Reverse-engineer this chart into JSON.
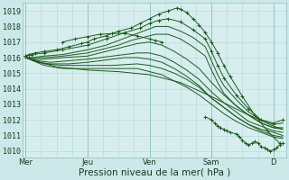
{
  "background_color": "#cce8e8",
  "plot_bg_color": "#d8eeee",
  "grid_color": "#b0d8d8",
  "line_color": "#1a5c1a",
  "ylabel_values": [
    1010,
    1011,
    1012,
    1013,
    1014,
    1015,
    1016,
    1017,
    1018,
    1019
  ],
  "ylim": [
    1009.6,
    1019.5
  ],
  "xlim": [
    -0.05,
    4.2
  ],
  "xlabel": "Pression niveau de la mer( hPa )",
  "xtick_labels": [
    "Mer",
    "Jeu",
    "Ven",
    "Sam",
    "D"
  ],
  "xtick_positions": [
    0,
    1,
    2,
    3,
    4
  ],
  "lines": [
    {
      "x": [
        0.0,
        0.05,
        0.15,
        0.3,
        0.5,
        0.7,
        0.9,
        1.0,
        1.1,
        1.3,
        1.5,
        1.7,
        1.85,
        2.0,
        2.15,
        2.3,
        2.45,
        2.5,
        2.6,
        2.7,
        2.8,
        2.9,
        3.0,
        3.1,
        3.2,
        3.3,
        3.5,
        3.7,
        3.9,
        4.1
      ],
      "y": [
        1016.1,
        1016.2,
        1016.3,
        1016.4,
        1016.5,
        1016.7,
        1016.9,
        1017.0,
        1017.2,
        1017.4,
        1017.7,
        1017.9,
        1018.2,
        1018.5,
        1018.8,
        1019.0,
        1019.2,
        1019.1,
        1018.9,
        1018.5,
        1018.1,
        1017.6,
        1017.0,
        1016.3,
        1015.5,
        1014.8,
        1013.5,
        1012.3,
        1011.3,
        1010.5
      ],
      "has_marker": true
    },
    {
      "x": [
        0.0,
        0.1,
        0.3,
        0.6,
        1.0,
        1.3,
        1.6,
        1.85,
        2.0,
        2.15,
        2.3,
        2.5,
        2.7,
        2.9,
        3.0,
        3.1,
        3.2,
        3.4,
        3.6,
        3.8,
        4.0,
        4.15
      ],
      "y": [
        1016.1,
        1016.2,
        1016.3,
        1016.5,
        1016.8,
        1017.2,
        1017.6,
        1017.9,
        1018.2,
        1018.4,
        1018.5,
        1018.3,
        1017.8,
        1017.2,
        1016.4,
        1015.5,
        1014.7,
        1013.6,
        1012.7,
        1012.0,
        1011.8,
        1012.0
      ],
      "has_marker": true
    },
    {
      "x": [
        0.6,
        0.8,
        1.0,
        1.2,
        1.4,
        1.6,
        1.8,
        2.0,
        2.1,
        2.2
      ],
      "y": [
        1017.0,
        1017.2,
        1017.35,
        1017.5,
        1017.55,
        1017.55,
        1017.4,
        1017.2,
        1017.1,
        1017.0
      ],
      "has_marker": true
    },
    {
      "x": [
        0.0,
        0.1,
        0.3,
        0.6,
        1.0,
        1.3,
        1.5,
        1.7,
        1.9,
        2.1,
        2.3,
        2.5,
        2.7,
        2.9,
        3.0,
        3.1,
        3.2,
        3.4,
        3.6,
        3.8,
        4.0,
        4.15
      ],
      "y": [
        1016.0,
        1016.0,
        1016.1,
        1016.2,
        1016.5,
        1016.8,
        1017.1,
        1017.4,
        1017.7,
        1018.0,
        1018.0,
        1017.7,
        1017.3,
        1016.7,
        1015.8,
        1014.9,
        1014.2,
        1013.3,
        1012.5,
        1012.0,
        1011.7,
        1011.8
      ],
      "has_marker": false
    },
    {
      "x": [
        0.0,
        0.1,
        0.3,
        0.6,
        1.0,
        1.3,
        1.5,
        1.7,
        1.9,
        2.1,
        2.3,
        2.5,
        2.7,
        2.9,
        3.0,
        3.1,
        3.2,
        3.4,
        3.6,
        3.8,
        4.0,
        4.15
      ],
      "y": [
        1016.0,
        1016.0,
        1016.0,
        1016.1,
        1016.3,
        1016.6,
        1016.8,
        1017.1,
        1017.3,
        1017.5,
        1017.5,
        1017.2,
        1016.7,
        1016.1,
        1015.2,
        1014.4,
        1013.7,
        1012.9,
        1012.3,
        1011.8,
        1011.5,
        1011.5
      ],
      "has_marker": false
    },
    {
      "x": [
        0.0,
        0.1,
        0.3,
        0.6,
        1.0,
        1.2,
        1.4,
        1.6,
        1.8,
        2.0,
        2.2,
        2.4,
        2.6,
        2.8,
        3.0,
        3.2,
        3.4,
        3.6,
        3.8,
        4.0,
        4.15
      ],
      "y": [
        1016.0,
        1015.9,
        1015.9,
        1016.0,
        1016.1,
        1016.3,
        1016.5,
        1016.7,
        1016.9,
        1017.0,
        1016.8,
        1016.4,
        1015.9,
        1015.3,
        1014.4,
        1013.6,
        1012.9,
        1012.3,
        1011.8,
        1011.5,
        1011.4
      ],
      "has_marker": false
    },
    {
      "x": [
        0.0,
        0.2,
        0.4,
        0.7,
        1.0,
        1.2,
        1.4,
        1.6,
        1.8,
        2.0,
        2.2,
        2.4,
        2.6,
        2.8,
        3.0,
        3.2,
        3.4,
        3.6,
        3.8,
        4.0,
        4.15
      ],
      "y": [
        1016.0,
        1015.8,
        1015.7,
        1015.8,
        1015.9,
        1016.0,
        1016.1,
        1016.2,
        1016.3,
        1016.3,
        1016.1,
        1015.7,
        1015.2,
        1014.6,
        1013.8,
        1013.1,
        1012.5,
        1011.9,
        1011.6,
        1011.3,
        1011.2
      ],
      "has_marker": false
    },
    {
      "x": [
        0.0,
        0.2,
        0.4,
        0.7,
        1.0,
        1.2,
        1.4,
        1.6,
        1.8,
        2.0,
        2.2,
        2.4,
        2.6,
        2.8,
        3.0,
        3.2,
        3.4,
        3.6,
        3.8,
        4.0,
        4.15
      ],
      "y": [
        1016.0,
        1015.7,
        1015.6,
        1015.6,
        1015.7,
        1015.8,
        1015.9,
        1016.0,
        1016.0,
        1015.9,
        1015.7,
        1015.3,
        1014.8,
        1014.2,
        1013.4,
        1012.8,
        1012.2,
        1011.7,
        1011.3,
        1011.0,
        1010.9
      ],
      "has_marker": false
    },
    {
      "x": [
        0.0,
        0.3,
        0.6,
        1.0,
        1.4,
        1.8,
        2.0,
        2.2,
        2.4,
        2.6,
        2.8,
        3.0,
        3.2,
        3.4,
        3.6,
        3.8,
        4.0,
        4.15
      ],
      "y": [
        1016.0,
        1015.6,
        1015.5,
        1015.5,
        1015.5,
        1015.6,
        1015.5,
        1015.3,
        1015.0,
        1014.6,
        1014.1,
        1013.4,
        1012.8,
        1012.2,
        1011.7,
        1011.4,
        1011.2,
        1011.0
      ],
      "has_marker": false
    },
    {
      "x": [
        0.0,
        0.3,
        0.6,
        1.0,
        1.4,
        1.8,
        2.0,
        2.2,
        2.4,
        2.6,
        2.8,
        3.0,
        3.2,
        3.4,
        3.6,
        3.8,
        4.0,
        4.15
      ],
      "y": [
        1016.0,
        1015.5,
        1015.3,
        1015.3,
        1015.3,
        1015.3,
        1015.1,
        1014.9,
        1014.5,
        1014.1,
        1013.6,
        1013.0,
        1012.4,
        1011.9,
        1011.5,
        1011.2,
        1010.9,
        1010.8
      ],
      "has_marker": false
    },
    {
      "x": [
        0.0,
        0.5,
        1.0,
        1.5,
        2.0,
        2.5,
        3.0,
        3.5,
        4.0,
        4.15
      ],
      "y": [
        1016.0,
        1015.4,
        1015.2,
        1015.1,
        1014.9,
        1014.4,
        1013.5,
        1012.5,
        1011.6,
        1011.4
      ],
      "has_marker": false
    },
    {
      "x": [
        2.9,
        3.0,
        3.05,
        3.1,
        3.15,
        3.2,
        3.25,
        3.3,
        3.4,
        3.45,
        3.5,
        3.55,
        3.6,
        3.65,
        3.7,
        3.75,
        3.8,
        3.85,
        3.9,
        3.95,
        4.0,
        4.05,
        4.1,
        4.15
      ],
      "y": [
        1012.2,
        1012.0,
        1011.8,
        1011.6,
        1011.5,
        1011.4,
        1011.3,
        1011.2,
        1011.1,
        1010.9,
        1010.7,
        1010.5,
        1010.4,
        1010.5,
        1010.6,
        1010.5,
        1010.3,
        1010.2,
        1010.1,
        1010.0,
        1010.1,
        1010.2,
        1010.4,
        1010.5
      ],
      "has_marker": true
    }
  ],
  "tick_fontsize": 6,
  "label_fontsize": 7.5
}
